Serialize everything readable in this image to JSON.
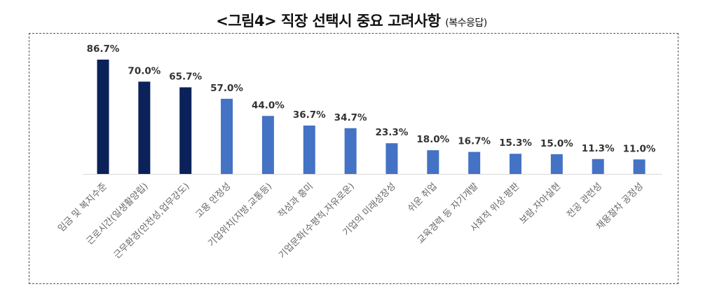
{
  "title": "<그림4> 직장 선택시 중요 고려사항",
  "subtitle": "(복수응답)",
  "chart_data": {
    "type": "bar",
    "title": "<그림4> 직장 선택시 중요 고려사항",
    "subtitle": "(복수응답)",
    "categories": [
      "임금 및 복지수준",
      "근로시간(일생활양립)",
      "근무환경(안전성,업무강도)",
      "고용 안정성",
      "기업위치(지방,교통등)",
      "적성과 흥미",
      "기업문화(수평적,자유로운)",
      "기업의 미래성장성",
      "쉬운 취업",
      "교육경력 등 자기개발",
      "사회적 위상·평판",
      "보람,자아실현",
      "전공 관련성",
      "채용절차 공정성"
    ],
    "values": [
      86.7,
      70.0,
      65.7,
      57.0,
      44.0,
      36.7,
      34.7,
      23.3,
      18.0,
      16.7,
      15.3,
      15.0,
      11.3,
      11.0
    ],
    "value_labels": [
      "86.7%",
      "70.0%",
      "65.7%",
      "57.0%",
      "44.0%",
      "36.7%",
      "34.7%",
      "23.3%",
      "18.0%",
      "16.7%",
      "15.3%",
      "15.0%",
      "11.3%",
      "11.0%"
    ],
    "highlight_count": 3,
    "colors": {
      "highlight": "#0a2159",
      "normal": "#4472c4",
      "axis": "#d9d9d9"
    },
    "ylim": [
      0,
      100
    ],
    "xlabel": "",
    "ylabel": "",
    "grid": false,
    "legend": "none"
  }
}
